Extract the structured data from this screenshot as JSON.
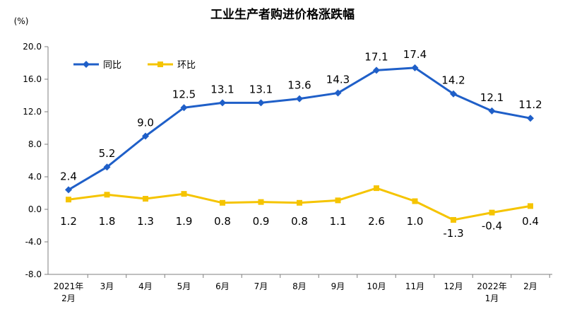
{
  "chart_data": {
    "type": "line",
    "title": "工业生产者购进价格涨跌幅",
    "ylabel": "(%)",
    "ylim": [
      -8.0,
      20.0
    ],
    "yticks": [
      "20.0",
      "16.0",
      "12.0",
      "8.0",
      "4.0",
      "0.0",
      "-4.0",
      "-8.0"
    ],
    "categories": [
      [
        "2021年",
        "2月"
      ],
      [
        "3月"
      ],
      [
        "4月"
      ],
      [
        "5月"
      ],
      [
        "6月"
      ],
      [
        "7月"
      ],
      [
        "8月"
      ],
      [
        "9月"
      ],
      [
        "10月"
      ],
      [
        "11月"
      ],
      [
        "12月"
      ],
      [
        "2022年",
        "1月"
      ],
      [
        "2月"
      ]
    ],
    "series": [
      {
        "name": "同比",
        "color": "#1f5fc8",
        "values": [
          2.4,
          5.2,
          9.0,
          12.5,
          13.1,
          13.1,
          13.6,
          14.3,
          17.1,
          17.4,
          14.2,
          12.1,
          11.2
        ],
        "labels": [
          "2.4",
          "5.2",
          "9.0",
          "12.5",
          "13.1",
          "13.1",
          "13.6",
          "14.3",
          "17.1",
          "17.4",
          "14.2",
          "12.1",
          "11.2"
        ]
      },
      {
        "name": "环比",
        "color": "#f5c400",
        "values": [
          1.2,
          1.8,
          1.3,
          1.9,
          0.8,
          0.9,
          0.8,
          1.1,
          2.6,
          1.0,
          -1.3,
          -0.4,
          0.4
        ],
        "labels": [
          "1.2",
          "1.8",
          "1.3",
          "1.9",
          "0.8",
          "0.9",
          "0.8",
          "1.1",
          "2.6",
          "1.0",
          "-1.3",
          "-0.4",
          "0.4"
        ]
      }
    ],
    "legend": "top-left",
    "grid": false
  }
}
